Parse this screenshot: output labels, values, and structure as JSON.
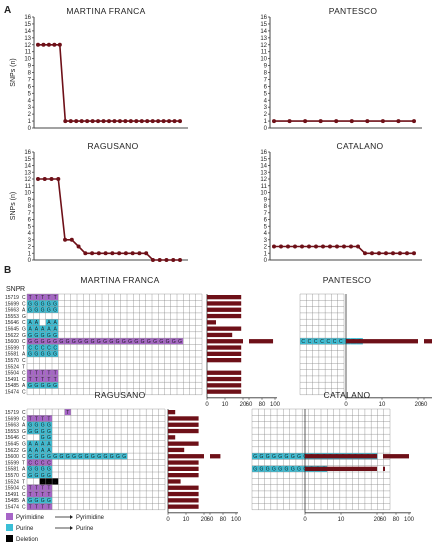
{
  "panel_labels": [
    "A",
    "B"
  ],
  "colors": {
    "line": "#6e1018",
    "bar": "#6e1018",
    "pyrimidine": "#a765c8",
    "purine": "#3bbfd6",
    "deletion": "#000000",
    "grid": "#888888"
  },
  "chart_data": [
    {
      "type": "line",
      "title": "MARTINA FRANCA",
      "ylabel": "SNPs (n)",
      "ylim": [
        0,
        16
      ],
      "y_ticks": [
        0,
        1,
        2,
        3,
        4,
        5,
        6,
        7,
        8,
        9,
        10,
        11,
        12,
        13,
        14,
        15,
        16
      ],
      "values": [
        12,
        12,
        12,
        12,
        12,
        1,
        1,
        1,
        1,
        1,
        1,
        1,
        1,
        1,
        1,
        1,
        1,
        1,
        1,
        1,
        1,
        1,
        1,
        1,
        1,
        1,
        1
      ]
    },
    {
      "type": "line",
      "title": "PANTESCO",
      "ylabel": "",
      "ylim": [
        0,
        16
      ],
      "y_ticks": [
        0,
        1,
        2,
        3,
        4,
        5,
        6,
        7,
        8,
        9,
        10,
        11,
        12,
        13,
        14,
        15,
        16
      ],
      "values": [
        1,
        1,
        1,
        1,
        1,
        1,
        1,
        1,
        1,
        1
      ]
    },
    {
      "type": "line",
      "title": "RAGUSANO",
      "ylabel": "SNPs (n)",
      "ylim": [
        0,
        16
      ],
      "y_ticks": [
        0,
        1,
        2,
        3,
        4,
        5,
        6,
        7,
        8,
        9,
        10,
        11,
        12,
        13,
        14,
        15,
        16
      ],
      "values": [
        12,
        12,
        12,
        12,
        3,
        3,
        2,
        1,
        1,
        1,
        1,
        1,
        1,
        1,
        1,
        1,
        1,
        0,
        0,
        0,
        0,
        0
      ]
    },
    {
      "type": "line",
      "title": "CATALANO",
      "ylabel": "",
      "ylim": [
        0,
        16
      ],
      "y_ticks": [
        0,
        1,
        2,
        3,
        4,
        5,
        6,
        7,
        8,
        9,
        10,
        11,
        12,
        13,
        14,
        15,
        16
      ],
      "values": [
        2,
        2,
        2,
        2,
        2,
        2,
        2,
        2,
        2,
        2,
        2,
        2,
        2,
        1,
        1,
        1,
        1,
        1,
        1,
        1,
        1
      ]
    },
    {
      "type": "heatmap",
      "title": "MARTINA FRANCA",
      "row_header": [
        "SNP",
        "R"
      ],
      "snps": [
        "15719",
        "15699",
        "15663",
        "15553",
        "15646",
        "15645",
        "15622",
        "15600",
        "15599",
        "15581",
        "15570",
        "15524",
        "15504",
        "15491",
        "15485",
        "15474"
      ],
      "ref": [
        "C",
        "C",
        "A",
        "G",
        "C",
        "G",
        "G",
        "C",
        "T",
        "A",
        "C",
        "T",
        "C",
        "C",
        "A",
        "C"
      ],
      "cells": [
        "YYYYY",
        "RRRRR",
        "RRRRR",
        "",
        "RR RR",
        "RRRRR",
        "RRRRR",
        "YYYYYYYYYYYYYYYYYYYYYYYYY",
        "RRRRR",
        "RRRRR",
        "",
        "",
        "YYYYY",
        "YYYYY",
        "RRRRR",
        ""
      ],
      "letters": [
        "TTTTT",
        "GGGGG",
        "GGGGG",
        "",
        "AA AA",
        "AAAAA",
        "GGGGG",
        "GGGGGGGGGGGGGGGGGGGGGGGGG",
        "CCCCC",
        "GGGGG",
        "",
        "",
        "TTTTT",
        "TTTTT",
        "GGGGG",
        ""
      ],
      "bar_values": [
        19,
        19,
        19,
        19,
        5,
        19,
        14,
        97,
        19,
        19,
        19,
        0,
        19,
        19,
        19,
        19
      ],
      "bar_axis_ticks": [
        "0",
        "10",
        "20",
        "60",
        "80",
        "100"
      ]
    },
    {
      "type": "heatmap",
      "title": "PANTESCO",
      "cells": [
        "",
        "",
        "",
        "",
        "",
        "",
        "",
        "RRRRRRRRRR",
        "",
        "",
        "",
        "",
        "",
        "",
        "",
        ""
      ],
      "letters": [
        "",
        "",
        "",
        "",
        "",
        "",
        "",
        "CCCCCCCCCC",
        "",
        "",
        "",
        "",
        "",
        "",
        "",
        ""
      ],
      "bar_values": [
        0,
        0,
        0,
        0,
        0,
        0,
        0,
        100,
        0,
        0,
        0,
        0,
        0,
        0,
        0,
        0
      ],
      "bar_axis_ticks": [
        "0",
        "10",
        "20",
        "60",
        "80",
        "100"
      ]
    },
    {
      "type": "heatmap",
      "title": "RAGUSANO",
      "snps": [
        "15719",
        "15699",
        "15663",
        "15553",
        "15646",
        "15645",
        "15622",
        "15600",
        "15599",
        "15581",
        "15570",
        "15524",
        "15504",
        "15491",
        "15485",
        "15474"
      ],
      "ref": [
        "C",
        "C",
        "A",
        "G",
        "C",
        "G",
        "G",
        "C",
        "T",
        "A",
        "C",
        "T",
        "C",
        "C",
        "A",
        "C"
      ],
      "cells": [
        "      Y",
        "YYYY",
        "RRRR",
        "RRRR",
        "  RR",
        "RRRR",
        "RRRR",
        "RRRRRRRRRRRRRRRR",
        "YYYY",
        "RRRR",
        "RRRR",
        "  DDD",
        "YYYY",
        "YYYY",
        "RRRR",
        "YYYY"
      ],
      "letters": [
        "      T",
        "TTTT",
        "GGGG",
        "GGGG",
        "  GG",
        "AAAA",
        "AAAA",
        "GGGGGGGGGGGGGGGG",
        "CCCC",
        "GGGG",
        "GGGG",
        "  ---",
        "TTTT",
        "TTTT",
        "GGGG",
        "TTTT"
      ],
      "bar_values": [
        4,
        17,
        17,
        17,
        4,
        17,
        9,
        76,
        17,
        17,
        17,
        7,
        17,
        17,
        17,
        17
      ],
      "bar_axis_ticks": [
        "0",
        "10",
        "20",
        "60",
        "80",
        "100"
      ]
    },
    {
      "type": "heatmap",
      "title": "CATALANO",
      "cells": [
        "",
        "",
        "",
        "",
        "",
        "",
        "",
        "RRRRRRRRRRRRRRRRRRRR",
        "",
        "RRRRRRRRRRRR",
        "",
        "",
        "",
        "",
        "",
        ""
      ],
      "letters": [
        "",
        "",
        "",
        "",
        "",
        "",
        "",
        "GGGGGGGGGGGGGGGGGGGG",
        "",
        "GGGGGGGGGGGG",
        "",
        "",
        "",
        "",
        "",
        ""
      ],
      "bar_values": [
        0,
        0,
        0,
        0,
        0,
        0,
        0,
        100,
        0,
        61,
        0,
        0,
        0,
        0,
        0,
        0
      ],
      "bar_axis_ticks": [
        "0",
        "10",
        "20",
        "60",
        "80",
        "100"
      ]
    }
  ],
  "legend": [
    {
      "key": "pyrimidine",
      "label": "Pyrimidine",
      "arrow_to": "Pyrimidine"
    },
    {
      "key": "purine",
      "label": "Purine",
      "arrow_to": "Purine"
    },
    {
      "key": "deletion",
      "label": "Deletion",
      "arrow_to": ""
    }
  ]
}
